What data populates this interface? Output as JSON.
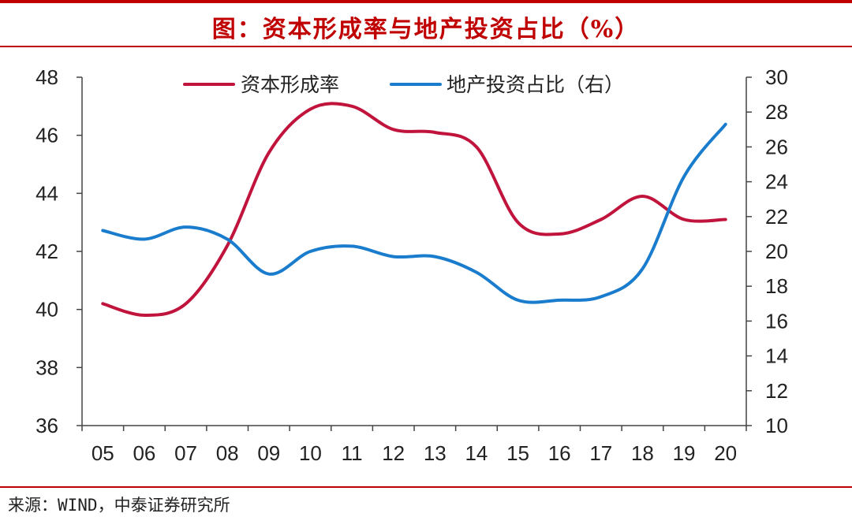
{
  "header": {
    "title": "图：资本形成率与地产投资占比（%）",
    "title_color": "#c00000"
  },
  "footer": {
    "source": "来源：WIND，中泰证券研究所"
  },
  "chart_data": {
    "type": "line",
    "title": "图：资本形成率与地产投资占比（%）",
    "categories": [
      "05",
      "06",
      "07",
      "08",
      "09",
      "10",
      "11",
      "12",
      "13",
      "14",
      "15",
      "16",
      "17",
      "18",
      "19",
      "20"
    ],
    "left_axis": {
      "min": 36,
      "max": 48,
      "ticks": [
        "36",
        "38",
        "40",
        "42",
        "44",
        "46",
        "48"
      ]
    },
    "right_axis": {
      "min": 10,
      "max": 30,
      "ticks": [
        "10",
        "12",
        "14",
        "16",
        "18",
        "20",
        "22",
        "24",
        "26",
        "28",
        "30"
      ]
    },
    "legend_placement": "top",
    "grid": false,
    "series": [
      {
        "name": "资本形成率",
        "axis": "left",
        "color": "#c0143c",
        "values": [
          40.2,
          39.8,
          40.2,
          42.2,
          45.4,
          46.9,
          47.0,
          46.2,
          46.1,
          45.6,
          43.0,
          42.6,
          43.1,
          43.9,
          43.1,
          43.1
        ]
      },
      {
        "name": "地产投资占比（右）",
        "axis": "right",
        "color": "#1a7ccc",
        "values": [
          21.2,
          20.7,
          21.4,
          20.7,
          18.7,
          20.0,
          20.3,
          19.7,
          19.7,
          18.8,
          17.2,
          17.2,
          17.4,
          19.0,
          24.3,
          27.3
        ]
      }
    ]
  }
}
